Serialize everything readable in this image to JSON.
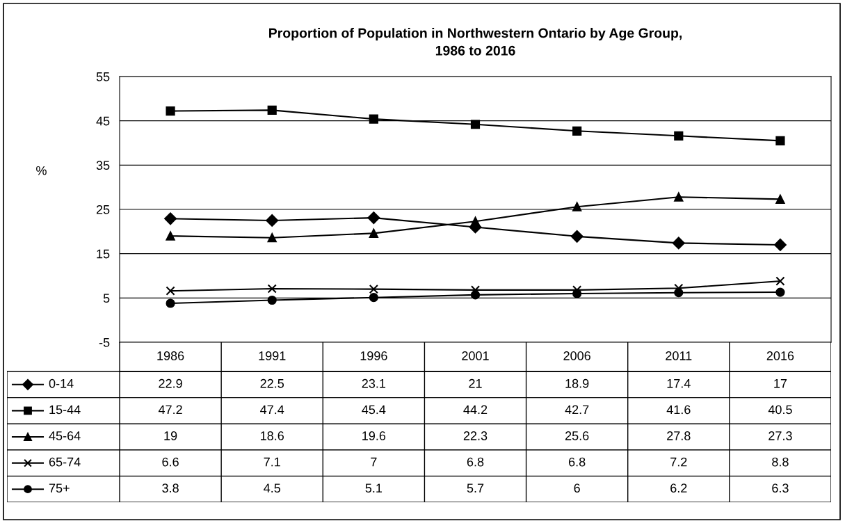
{
  "chart_data": {
    "type": "line",
    "title": "Proportion of Population in Northwestern Ontario by Age Group,\n1986 to 2016",
    "ylabel": "%",
    "categories": [
      "1986",
      "1991",
      "1996",
      "2001",
      "2006",
      "2011",
      "2016"
    ],
    "series": [
      {
        "name": "0-14",
        "color": "#000000",
        "marker": "diamond",
        "values": [
          22.9,
          22.5,
          23.1,
          21,
          18.9,
          17.4,
          17
        ]
      },
      {
        "name": "15-44",
        "color": "#000000",
        "marker": "square",
        "values": [
          47.2,
          47.4,
          45.4,
          44.2,
          42.7,
          41.6,
          40.5
        ]
      },
      {
        "name": "45-64",
        "color": "#000000",
        "marker": "triangle",
        "values": [
          19,
          18.6,
          19.6,
          22.3,
          25.6,
          27.8,
          27.3
        ]
      },
      {
        "name": "65-74",
        "color": "#000000",
        "marker": "cross",
        "values": [
          6.6,
          7.1,
          7,
          6.8,
          6.8,
          7.2,
          8.8
        ]
      },
      {
        "name": "75+",
        "color": "#000000",
        "marker": "circle",
        "values": [
          3.8,
          4.5,
          5.1,
          5.7,
          6,
          6.2,
          6.3
        ]
      }
    ],
    "ylim": [
      -5,
      55
    ],
    "yticks": [
      -5,
      5,
      15,
      25,
      35,
      45,
      55
    ],
    "grid": "y",
    "legend": "bottom",
    "data_labels": true,
    "line_style": "solid"
  }
}
